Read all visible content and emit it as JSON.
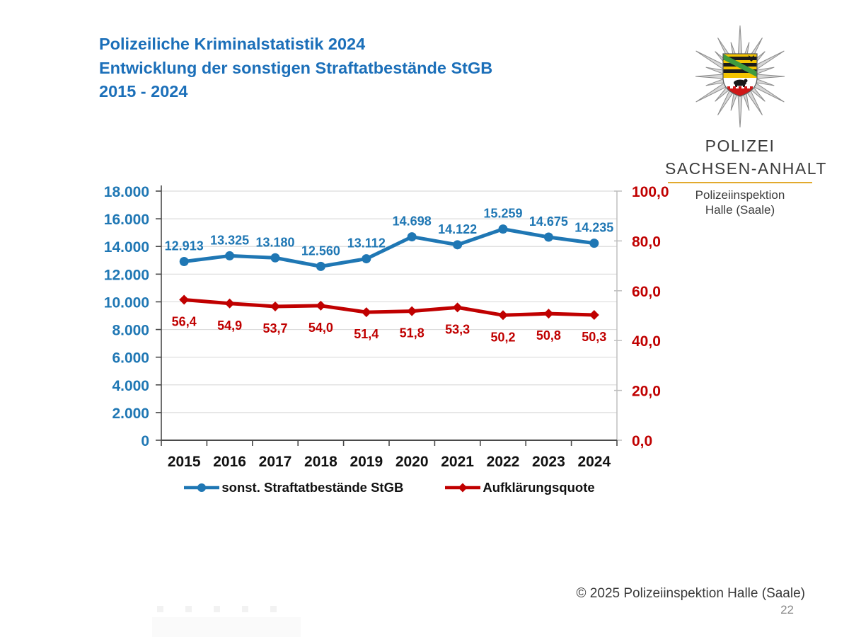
{
  "slide": {
    "title_lines": [
      "Polizeiliche Kriminalstatistik 2024",
      "Entwicklung der sonstigen Straftatbestände StGB",
      "2015 - 2024"
    ],
    "footer_copyright": "© 2025 Polizeiinspektion Halle (Saale)",
    "page_number": "22"
  },
  "logo": {
    "org_line1": "POLIZEI",
    "org_line2": "SACHSEN-ANHALT",
    "dept_line1": "Polizeiinspektion",
    "dept_line2": "Halle (Saale)"
  },
  "colors": {
    "title_blue": "#1B6FB9",
    "series_blue": "#1F77B4",
    "series_red": "#C00000",
    "grid": "#DCDCDC",
    "axis_dark": "#4A4A4A",
    "axis_light": "#BFBFBF",
    "year_label": "#111111",
    "gold_rule": "#E2AA2E"
  },
  "chart_data": {
    "type": "line",
    "categories": [
      "2015",
      "2016",
      "2017",
      "2018",
      "2019",
      "2020",
      "2021",
      "2022",
      "2023",
      "2024"
    ],
    "series": [
      {
        "name": "sonst. Straftatbestände StGB",
        "axis": "left",
        "color": "#1F77B4",
        "marker": "circle",
        "values": [
          12913,
          13325,
          13180,
          12560,
          13112,
          14698,
          14122,
          15259,
          14675,
          14235
        ],
        "labels": [
          "12.913",
          "13.325",
          "13.180",
          "12.560",
          "13.112",
          "14.698",
          "14.122",
          "15.259",
          "14.675",
          "14.235"
        ]
      },
      {
        "name": "Aufklärungsquote",
        "axis": "right",
        "color": "#C00000",
        "marker": "diamond",
        "values": [
          56.4,
          54.9,
          53.7,
          54.0,
          51.4,
          51.8,
          53.3,
          50.2,
          50.8,
          50.3
        ],
        "labels": [
          "56,4",
          "54,9",
          "53,7",
          "54,0",
          "51,4",
          "51,8",
          "53,3",
          "50,2",
          "50,8",
          "50,3"
        ]
      }
    ],
    "left_axis": {
      "min": 0,
      "max": 18000,
      "step": 2000,
      "tick_labels": [
        "0",
        "2.000",
        "4.000",
        "6.000",
        "8.000",
        "10.000",
        "12.000",
        "14.000",
        "16.000",
        "18.000"
      ]
    },
    "right_axis": {
      "min": 0,
      "max": 100,
      "step": 20,
      "tick_labels": [
        "0,0",
        "20,0",
        "40,0",
        "60,0",
        "80,0",
        "100,0"
      ]
    },
    "grid": true,
    "legend_position": "bottom"
  }
}
